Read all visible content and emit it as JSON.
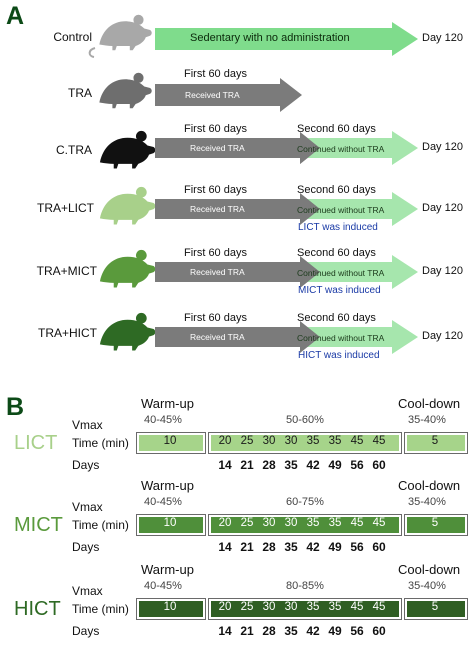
{
  "panel_a": {
    "letter": "A",
    "groups": [
      {
        "label": "Control",
        "color": "#a8a8a8",
        "arrow1_text": "Sedentary with no administration",
        "end_label": "Day 120"
      },
      {
        "label": "TRA",
        "color": "#6e6e6e",
        "phase1_label": "First 60 days",
        "arrow1_text": "Received TRA"
      },
      {
        "label": "C.TRA",
        "color": "#111111",
        "phase1_label": "First 60 days",
        "arrow1_text": "Received TRA",
        "phase2_label": "Second 60 days",
        "arrow2_text": "Continued without TRA",
        "end_label": "Day 120"
      },
      {
        "label": "TRA+LICT",
        "color": "#a8d08a",
        "phase1_label": "First 60 days",
        "arrow1_text": "Received TRA",
        "phase2_label": "Second 60 days",
        "arrow2_text": "Continued without TRA",
        "end_label": "Day 120",
        "induced": "LICT  was induced"
      },
      {
        "label": "TRA+MICT",
        "color": "#5a9a3c",
        "phase1_label": "First 60 days",
        "arrow1_text": "Received TRA",
        "phase2_label": "Second 60 days",
        "arrow2_text": "Continued without TRA",
        "end_label": "Day 120",
        "induced": "MICT was induced"
      },
      {
        "label": "TRA+HICT",
        "color": "#2e6a24",
        "phase1_label": "First 60 days",
        "arrow1_text": "Received TRA",
        "phase2_label": "Second 60 days",
        "arrow2_text": "Continued without TRA",
        "end_label": "Day 120",
        "induced": "HICT was induced"
      }
    ],
    "colors": {
      "green_arrow": "#7fdc8c",
      "light_green_arrow": "#a6e6ad",
      "gray_arrow": "#7b7b7b"
    }
  },
  "panel_b": {
    "letter": "B",
    "row_labels": {
      "vmax": "Vmax",
      "time": "Time (min)",
      "days": "Days"
    },
    "warmup_label": "Warm-up",
    "cooldown_label": "Cool-down",
    "warmup_pct": "40-45%",
    "cooldown_pct": "35-40%",
    "warmup_time": "10",
    "cooldown_time": "5",
    "days": [
      "14",
      "21",
      "28",
      "35",
      "42",
      "49",
      "56",
      "60"
    ],
    "protocols": [
      {
        "name": "LICT",
        "name_color": "#a8d08a",
        "bar_color": "#a6d48a",
        "text_color": "#1a1a1a",
        "main_pct": "50-60%",
        "times": [
          "20",
          "25",
          "30",
          "30",
          "35",
          "35",
          "45",
          "45"
        ]
      },
      {
        "name": "MICT",
        "name_color": "#5a9a3c",
        "bar_color": "#4f8f3a",
        "text_color": "#ffffff",
        "main_pct": "60-75%",
        "times": [
          "20",
          "25",
          "30",
          "30",
          "35",
          "35",
          "45",
          "45"
        ]
      },
      {
        "name": "HICT",
        "name_color": "#2e6a24",
        "bar_color": "#2f5e23",
        "text_color": "#ffffff",
        "main_pct": "80-85%",
        "times": [
          "20",
          "25",
          "30",
          "30",
          "35",
          "35",
          "45",
          "45"
        ]
      }
    ]
  }
}
